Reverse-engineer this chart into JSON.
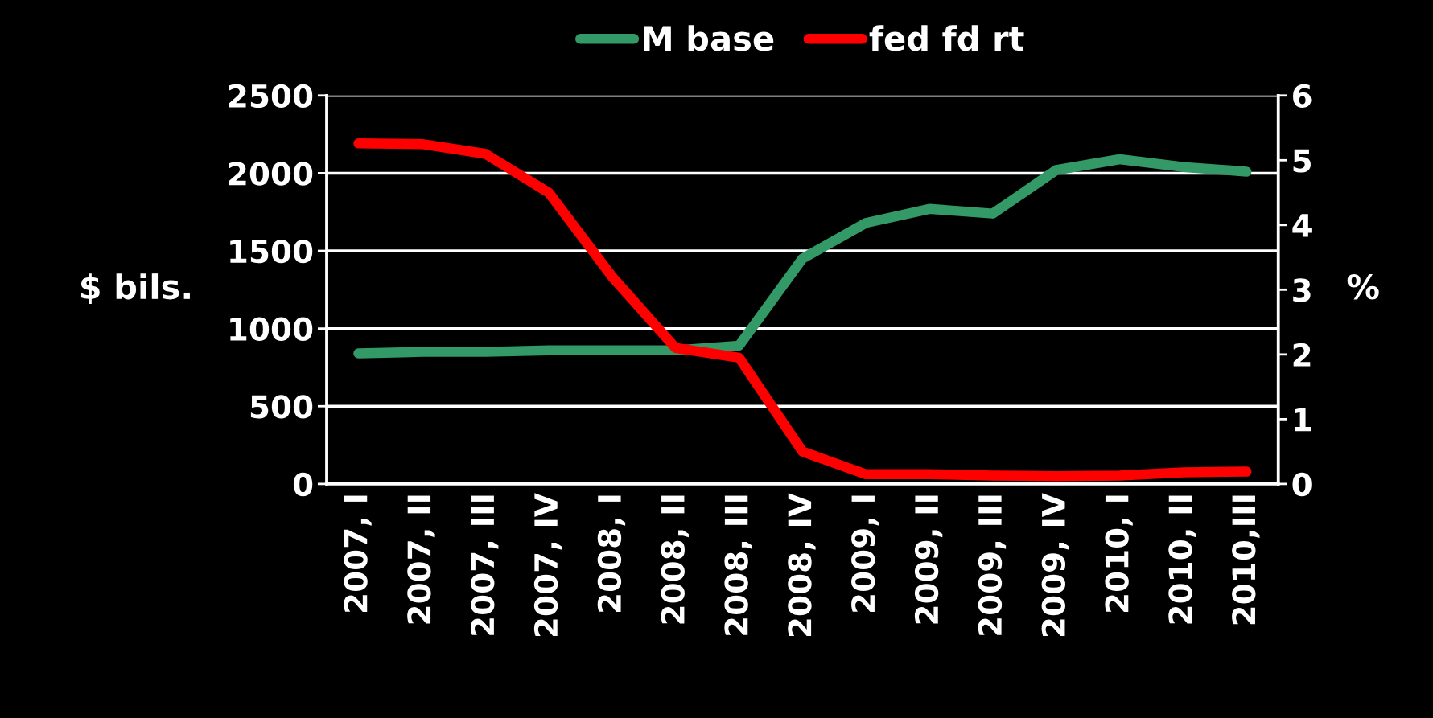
{
  "chart_data": {
    "type": "line",
    "categories": [
      "2007, I",
      "2007, II",
      "2007, III",
      "2007, IV",
      "2008, I",
      "2008, II",
      "2008, III",
      "2008, IV",
      "2009, I",
      "2009, II",
      "2009, III",
      "2009, IV",
      "2010, I",
      "2010, II",
      "2010,III"
    ],
    "series": [
      {
        "name": "M base",
        "color": "#339966",
        "values": [
          840,
          850,
          850,
          860,
          860,
          860,
          890,
          1450,
          1680,
          1770,
          1740,
          2020,
          2090,
          2040,
          2010
        ]
      },
      {
        "name": "fed fd rt",
        "color": "#ff0000",
        "axis": "y2",
        "values": [
          5.26,
          5.25,
          5.1,
          4.5,
          3.2,
          2.1,
          1.95,
          0.5,
          0.15,
          0.15,
          0.13,
          0.12,
          0.13,
          0.18,
          0.19
        ]
      }
    ],
    "ylabel": "$ bils.",
    "y2label": "%",
    "ylim": [
      0,
      2500
    ],
    "yticks": [
      0,
      500,
      1000,
      1500,
      2000,
      2500
    ],
    "y2lim": [
      0,
      6
    ],
    "y2ticks": [
      0,
      1,
      2,
      3,
      4,
      5,
      6
    ],
    "grid": "y",
    "legend": "top",
    "line_style": "solid"
  }
}
